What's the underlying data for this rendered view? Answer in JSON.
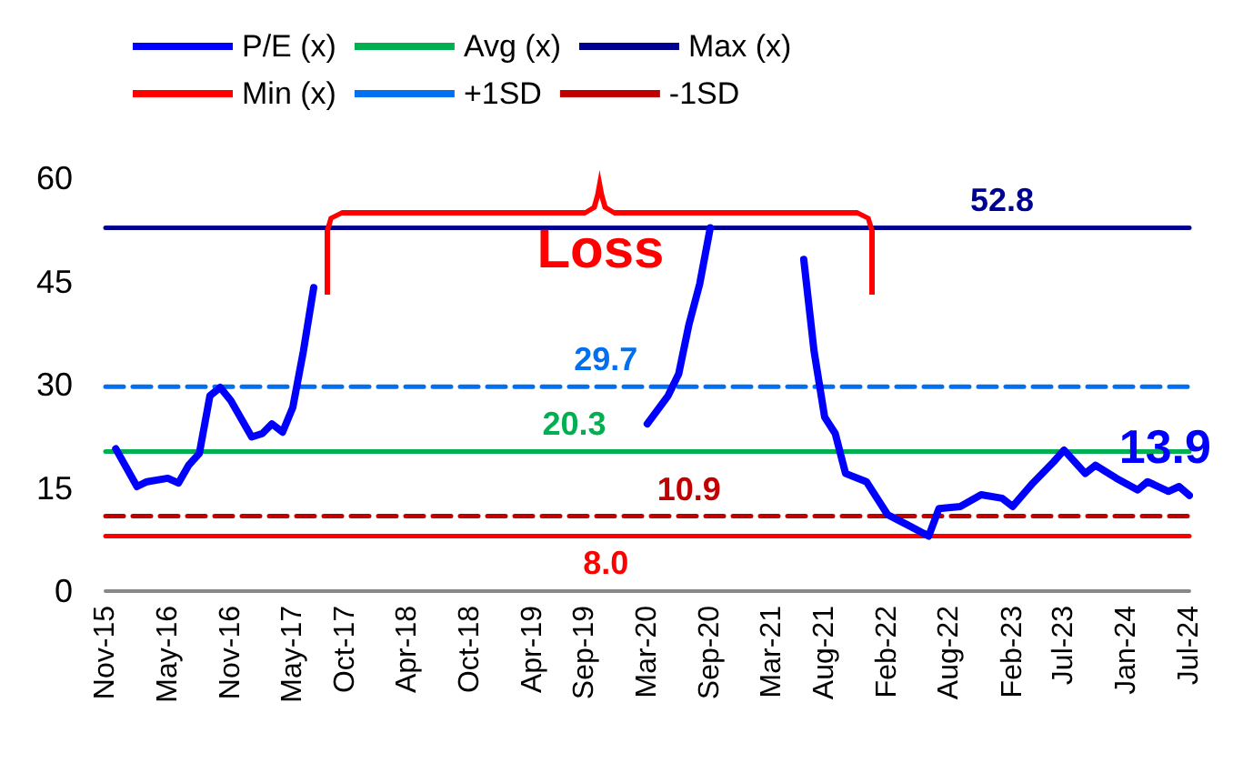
{
  "chart_data": {
    "type": "line",
    "series": [
      {
        "name": "P/E (x)",
        "color": "#0000ff",
        "x": [
          "2015-12",
          "2016-02",
          "2016-03",
          "2016-05",
          "2016-06",
          "2016-07",
          "2016-08",
          "2016-09",
          "2016-10",
          "2016-11",
          "2017-01",
          "2017-02",
          "2017-03",
          "2017-04",
          "2017-05",
          "2017-06",
          "2017-07",
          "2018-06",
          "2020-03",
          "2020-05",
          "2020-06",
          "2020-07",
          "2020-08",
          "2020-09",
          "2021-01",
          "2021-06",
          "2021-07",
          "2021-08",
          "2021-09",
          "2021-10",
          "2021-12",
          "2022-02",
          "2022-03",
          "2022-04",
          "2022-06",
          "2022-07",
          "2022-09",
          "2022-11",
          "2023-01",
          "2023-02",
          "2023-04",
          "2023-06",
          "2023-07",
          "2023-09",
          "2023-10",
          "2023-12",
          "2024-02",
          "2024-03",
          "2024-05",
          "2024-06",
          "2024-07"
        ],
        "values": [
          20.7,
          15.2,
          15.9,
          16.4,
          15.7,
          18.3,
          20,
          28.4,
          29.6,
          27.7,
          22.4,
          22.9,
          24.3,
          23.1,
          26.7,
          34.9,
          44.1,
          null,
          24.3,
          28.4,
          31.6,
          38.8,
          44.6,
          52.8,
          null,
          48.2,
          34.9,
          25.3,
          22.9,
          17.1,
          15.9,
          11.1,
          10.4,
          9.6,
          8.0,
          12.0,
          12.3,
          14.0,
          13.5,
          12.3,
          15.7,
          18.8,
          20.5,
          17.1,
          18.3,
          16.4,
          14.7,
          15.9,
          14.5,
          15.2,
          13.9
        ],
        "value_labels": [
          null,
          null,
          null,
          null,
          null,
          null,
          null,
          null,
          null,
          null,
          null,
          null,
          null,
          null,
          null,
          null,
          null,
          null,
          null,
          null,
          null,
          null,
          null,
          null,
          null,
          null,
          null,
          null,
          null,
          null,
          null,
          null,
          null,
          null,
          null,
          null,
          null,
          null,
          null,
          null,
          null,
          null,
          null,
          null,
          null,
          null,
          null,
          null,
          null,
          null,
          "13.9"
        ]
      },
      {
        "name": "Avg (x)",
        "color": "#00b050",
        "x": [
          "2015-11",
          "2019-08",
          "2024-07"
        ],
        "values": [
          20.3,
          20.3,
          20.3
        ],
        "value_labels": [
          null,
          "20.3",
          null
        ]
      },
      {
        "name": "Max (x)",
        "color": "#000090",
        "x": [
          "2015-11",
          "2023-01",
          "2024-07"
        ],
        "values": [
          52.8,
          52.8,
          52.8
        ],
        "value_labels": [
          null,
          "52.8",
          null
        ]
      },
      {
        "name": "Min (x)",
        "color": "#ff0000",
        "x": [
          "2015-11",
          "2019-11",
          "2024-07"
        ],
        "values": [
          8.0,
          8.0,
          8.0
        ],
        "value_labels": [
          null,
          "8.0",
          null
        ]
      },
      {
        "name": "+1SD",
        "color": "#0070f0",
        "line_style": "dashed",
        "x": [
          "2015-11",
          "2019-11",
          "2024-07"
        ],
        "values": [
          29.7,
          29.7,
          29.7
        ],
        "value_labels": [
          null,
          "29.7",
          null
        ]
      },
      {
        "name": "-1SD",
        "color": "#c00000",
        "line_style": "dashed",
        "x": [
          "2015-11",
          "2020-07",
          "2024-07"
        ],
        "values": [
          10.9,
          10.9,
          10.9
        ],
        "value_labels": [
          null,
          "10.9",
          null
        ]
      }
    ],
    "annotations": [
      "Loss"
    ],
    "xlim": [
      "2015-11",
      "2024-07"
    ],
    "xticks": [
      {
        "value": "2015-11",
        "label": "Nov-15"
      },
      {
        "value": "2016-05",
        "label": "May-16"
      },
      {
        "value": "2016-11",
        "label": "Nov-16"
      },
      {
        "value": "2017-05",
        "label": "May-17"
      },
      {
        "value": "2017-10",
        "label": "Oct-17"
      },
      {
        "value": "2018-04",
        "label": "Apr-18"
      },
      {
        "value": "2018-10",
        "label": "Oct-18"
      },
      {
        "value": "2019-04",
        "label": "Apr-19"
      },
      {
        "value": "2019-09",
        "label": "Sep-19"
      },
      {
        "value": "2020-03",
        "label": "Mar-20"
      },
      {
        "value": "2020-09",
        "label": "Sep-20"
      },
      {
        "value": "2021-03",
        "label": "Mar-21"
      },
      {
        "value": "2021-08",
        "label": "Aug-21"
      },
      {
        "value": "2022-02",
        "label": "Feb-22"
      },
      {
        "value": "2022-08",
        "label": "Aug-22"
      },
      {
        "value": "2023-02",
        "label": "Feb-23"
      },
      {
        "value": "2023-07",
        "label": "Jul-23"
      },
      {
        "value": "2024-01",
        "label": "Jan-24"
      },
      {
        "value": "2024-07",
        "label": "Jul-24"
      }
    ],
    "ylim": [
      0,
      60
    ],
    "yticks": [
      0,
      15,
      30,
      45,
      60
    ],
    "grid": false,
    "legend": "top"
  }
}
